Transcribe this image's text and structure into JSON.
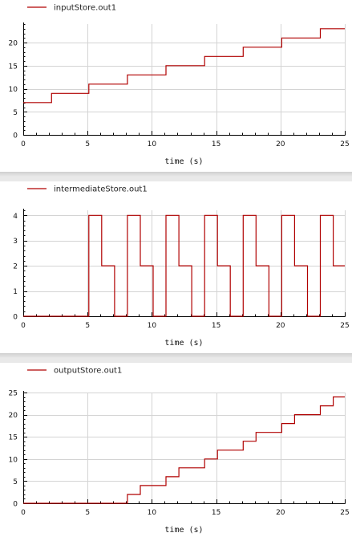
{
  "colors": {
    "series": "#b00000",
    "grid": "#d4d4d4",
    "axis": "#000000"
  },
  "chart_data": [
    {
      "type": "line",
      "step": true,
      "series": [
        {
          "name": "inputStore.out1",
          "x": [
            0,
            2.2,
            2.2,
            5.1,
            5.1,
            8.1,
            8.1,
            11.1,
            11.1,
            14.1,
            14.1,
            17.1,
            17.1,
            20.1,
            20.1,
            23.1,
            23.1,
            25
          ],
          "y": [
            7,
            7,
            9,
            9,
            11,
            11,
            13,
            13,
            15,
            15,
            17,
            17,
            19,
            19,
            21,
            21,
            23,
            23
          ]
        }
      ],
      "xlabel": "time (s)",
      "xlim": [
        0,
        25
      ],
      "ylim": [
        0,
        24
      ],
      "xticks": [
        0,
        5,
        10,
        15,
        20,
        25
      ],
      "yticks": [
        0,
        5,
        10,
        15,
        20
      ],
      "grid": true,
      "legend": "top-left"
    },
    {
      "type": "line",
      "step": true,
      "series": [
        {
          "name": "intermediateStore.out1",
          "x": [
            0,
            5.1,
            5.1,
            6.1,
            6.1,
            7.1,
            7.1,
            8.1,
            8.1,
            9.1,
            9.1,
            10.1,
            10.1,
            11.1,
            11.1,
            12.1,
            12.1,
            13.1,
            13.1,
            14.1,
            14.1,
            15.1,
            15.1,
            16.1,
            16.1,
            17.1,
            17.1,
            18.1,
            18.1,
            19.1,
            19.1,
            20.1,
            20.1,
            21.1,
            21.1,
            22.1,
            22.1,
            23.1,
            23.1,
            24.1,
            24.1,
            25
          ],
          "y": [
            0,
            0,
            4,
            4,
            2,
            2,
            0,
            0,
            4,
            4,
            2,
            2,
            0,
            0,
            4,
            4,
            2,
            2,
            0,
            0,
            4,
            4,
            2,
            2,
            0,
            0,
            4,
            4,
            2,
            2,
            0,
            0,
            4,
            4,
            2,
            2,
            0,
            0,
            4,
            4,
            2,
            2
          ]
        }
      ],
      "xlabel": "time (s)",
      "xlim": [
        0,
        25
      ],
      "ylim": [
        0,
        4.2
      ],
      "xticks": [
        0,
        5,
        10,
        15,
        20,
        25
      ],
      "yticks": [
        0,
        1,
        2,
        3,
        4
      ],
      "grid": true,
      "legend": "top-left"
    },
    {
      "type": "line",
      "step": true,
      "series": [
        {
          "name": "outputStore.out1",
          "x": [
            0,
            8.1,
            8.1,
            9.1,
            9.1,
            11.1,
            11.1,
            12.1,
            12.1,
            14.1,
            14.1,
            15.1,
            15.1,
            17.1,
            17.1,
            18.1,
            18.1,
            20.1,
            20.1,
            21.1,
            21.1,
            23.1,
            23.1,
            24.1,
            24.1,
            25
          ],
          "y": [
            0,
            0,
            2,
            2,
            4,
            4,
            6,
            6,
            8,
            8,
            10,
            10,
            12,
            12,
            14,
            14,
            16,
            16,
            18,
            18,
            20,
            20,
            22,
            22,
            24,
            24
          ]
        }
      ],
      "xlabel": "time (s)",
      "xlim": [
        0,
        25
      ],
      "ylim": [
        0,
        25
      ],
      "xticks": [
        0,
        5,
        10,
        15,
        20,
        25
      ],
      "yticks": [
        0,
        5,
        10,
        15,
        20,
        25
      ],
      "grid": true,
      "legend": "top-left"
    }
  ]
}
